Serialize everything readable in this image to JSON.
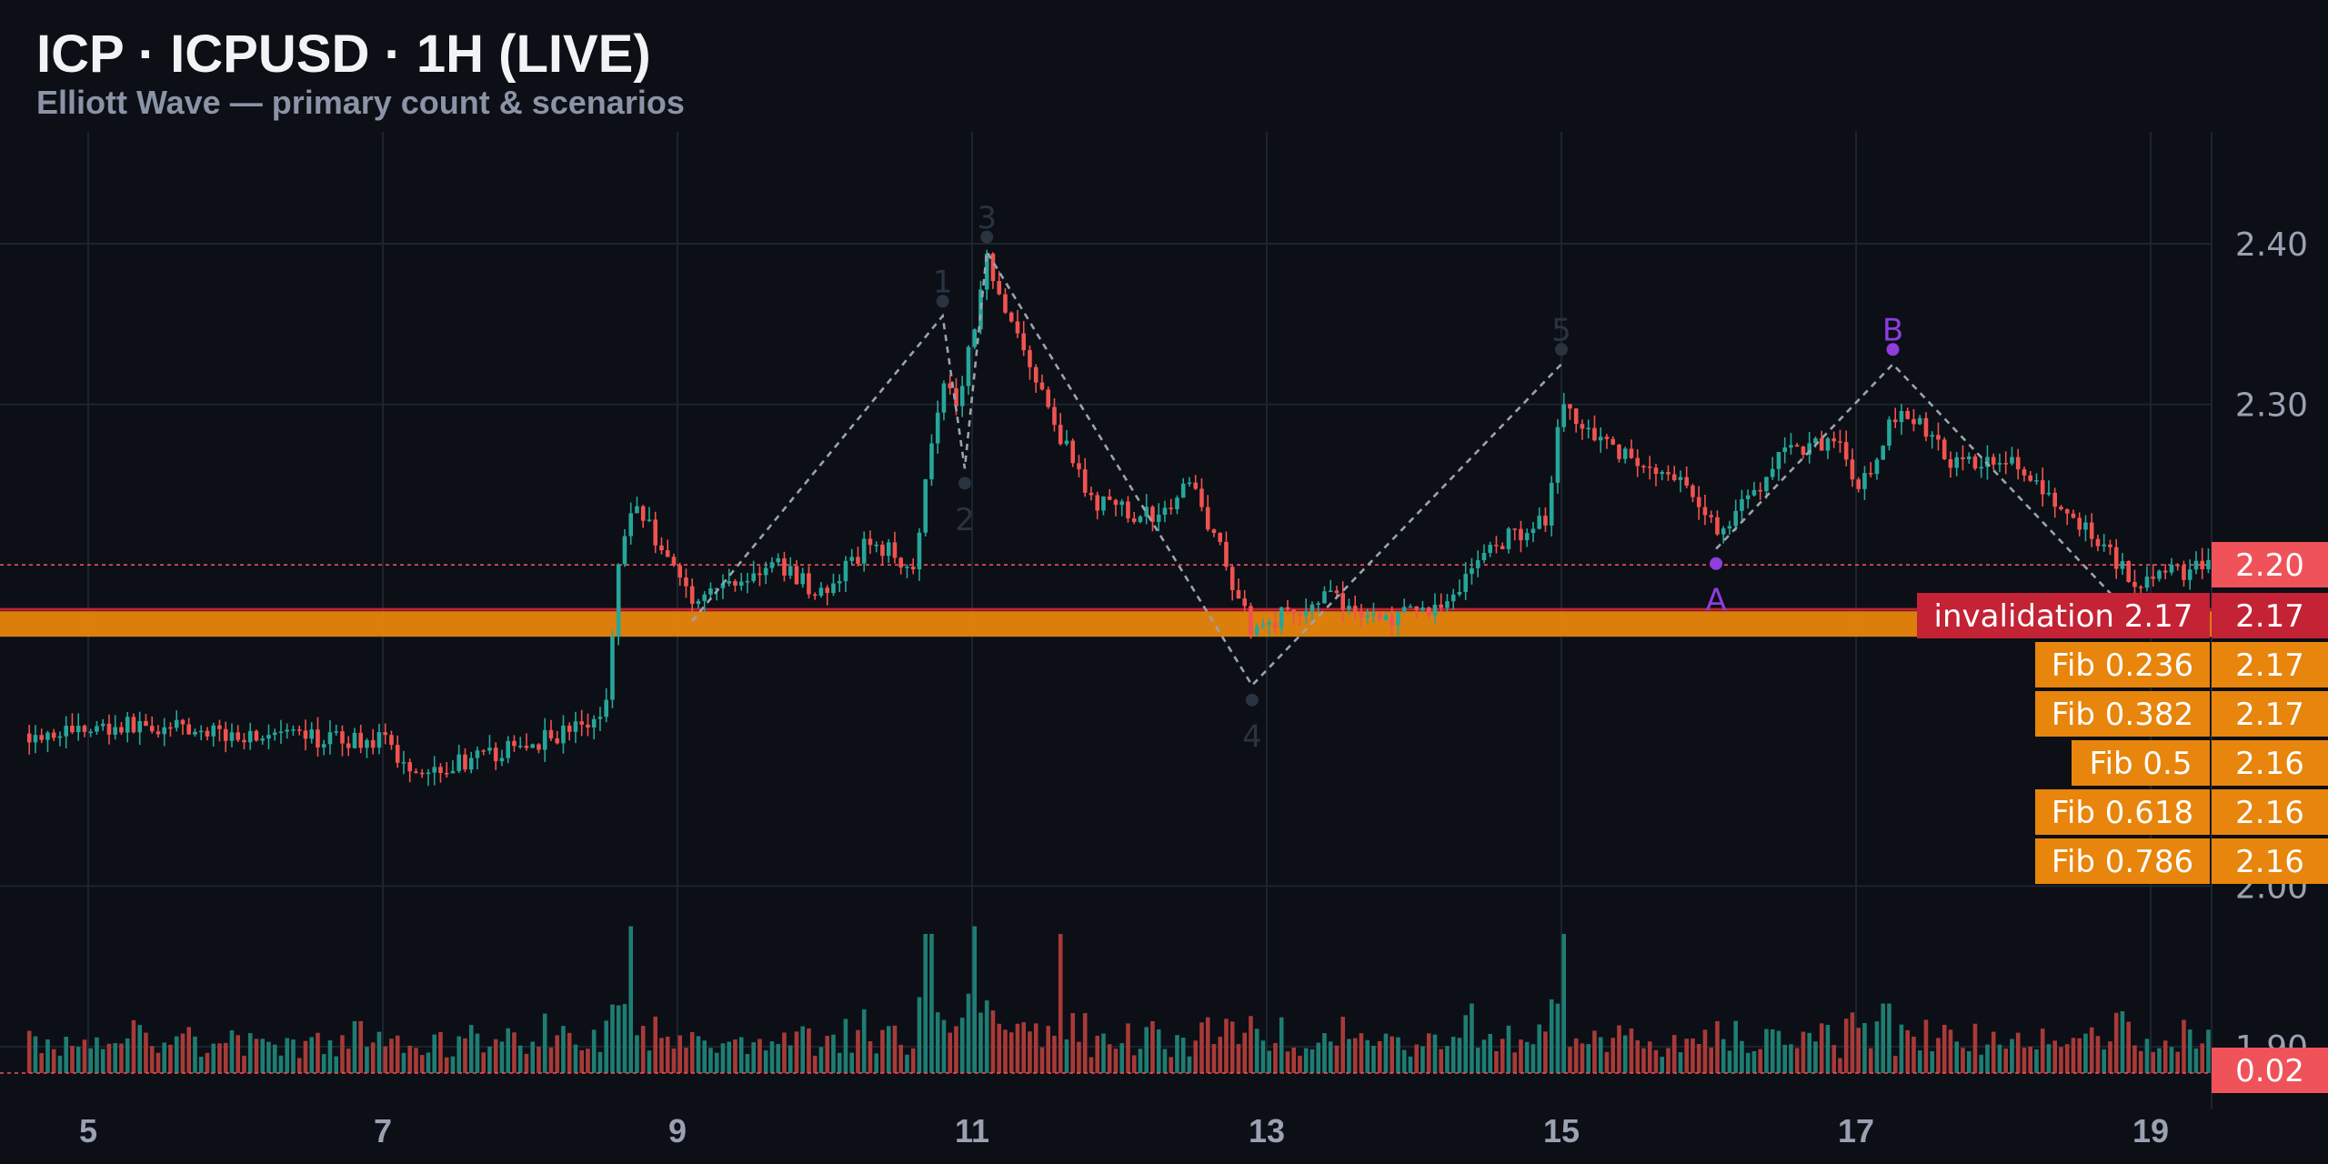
{
  "header": {
    "title": "ICP · ICPUSD · 1H (LIVE)",
    "subtitle": "Elliott Wave — primary count & scenarios"
  },
  "chart_data": {
    "type": "candlestick",
    "symbol": "ICPUSD",
    "timeframe": "1H",
    "x_ticks": [
      "5",
      "7",
      "9",
      "11",
      "13",
      "15",
      "17",
      "19"
    ],
    "x_range_days": [
      4.6,
      19.4
    ],
    "y_ticks": [
      "2.40",
      "2.30",
      "2.00",
      "1.90"
    ],
    "y_range": [
      1.87,
      2.47
    ],
    "grid": true,
    "price_path": [
      {
        "d": 4.6,
        "p": 2.095
      },
      {
        "d": 5.3,
        "p": 2.1
      },
      {
        "d": 5.9,
        "p": 2.095
      },
      {
        "d": 6.5,
        "p": 2.092
      },
      {
        "d": 7.0,
        "p": 2.09
      },
      {
        "d": 7.2,
        "p": 2.072
      },
      {
        "d": 7.7,
        "p": 2.08
      },
      {
        "d": 8.2,
        "p": 2.095
      },
      {
        "d": 8.5,
        "p": 2.105
      },
      {
        "d": 8.6,
        "p": 2.2
      },
      {
        "d": 8.7,
        "p": 2.24
      },
      {
        "d": 9.1,
        "p": 2.18
      },
      {
        "d": 9.7,
        "p": 2.2
      },
      {
        "d": 10.0,
        "p": 2.18
      },
      {
        "d": 10.3,
        "p": 2.215
      },
      {
        "d": 10.6,
        "p": 2.2
      },
      {
        "d": 10.8,
        "p": 2.32
      },
      {
        "d": 10.9,
        "p": 2.3
      },
      {
        "d": 11.1,
        "p": 2.39
      },
      {
        "d": 11.5,
        "p": 2.3
      },
      {
        "d": 11.8,
        "p": 2.24
      },
      {
        "d": 12.2,
        "p": 2.23
      },
      {
        "d": 12.5,
        "p": 2.25
      },
      {
        "d": 12.9,
        "p": 2.16
      },
      {
        "d": 13.4,
        "p": 2.18
      },
      {
        "d": 13.8,
        "p": 2.165
      },
      {
        "d": 14.2,
        "p": 2.175
      },
      {
        "d": 14.5,
        "p": 2.21
      },
      {
        "d": 14.9,
        "p": 2.23
      },
      {
        "d": 15.0,
        "p": 2.3
      },
      {
        "d": 15.4,
        "p": 2.27
      },
      {
        "d": 15.8,
        "p": 2.25
      },
      {
        "d": 16.1,
        "p": 2.22
      },
      {
        "d": 16.5,
        "p": 2.27
      },
      {
        "d": 16.9,
        "p": 2.28
      },
      {
        "d": 17.0,
        "p": 2.24
      },
      {
        "d": 17.3,
        "p": 2.3
      },
      {
        "d": 17.7,
        "p": 2.26
      },
      {
        "d": 18.0,
        "p": 2.27
      },
      {
        "d": 18.3,
        "p": 2.24
      },
      {
        "d": 18.6,
        "p": 2.22
      },
      {
        "d": 18.9,
        "p": 2.19
      },
      {
        "d": 19.4,
        "p": 2.2
      }
    ],
    "volume_spikes": [
      {
        "d": 8.7,
        "v": 0.95
      },
      {
        "d": 10.7,
        "v": 0.9
      },
      {
        "d": 11.0,
        "v": 0.95
      },
      {
        "d": 11.6,
        "v": 0.9
      },
      {
        "d": 15.0,
        "v": 0.9
      },
      {
        "d": 17.2,
        "v": 0.45
      },
      {
        "d": 14.4,
        "v": 0.45
      },
      {
        "d": 18.8,
        "v": 0.4
      }
    ],
    "elliott_wave": {
      "impulse_points": [
        {
          "label": "",
          "d": 9.1,
          "p": 2.165
        },
        {
          "label": "1",
          "d": 10.8,
          "p": 2.355
        },
        {
          "label": "2",
          "d": 10.95,
          "p": 2.26
        },
        {
          "label": "3",
          "d": 11.1,
          "p": 2.395
        },
        {
          "label": "4",
          "d": 12.9,
          "p": 2.125
        },
        {
          "label": "5",
          "d": 15.0,
          "p": 2.325
        }
      ],
      "corrective_points": [
        {
          "label": "A",
          "d": 16.05,
          "p": 2.21
        },
        {
          "label": "B",
          "d": 17.25,
          "p": 2.325
        },
        {
          "label": "",
          "d": 18.75,
          "p": 2.18
        }
      ],
      "label_colors": {
        "impulse": "#2a3340",
        "corrective": "#8f3dde"
      }
    },
    "levels": [
      {
        "name": "last-price",
        "value": 2.2,
        "axis_label": "2.20",
        "color": "#f0525a"
      },
      {
        "name": "invalidation",
        "value": 2.17,
        "tag": "invalidation 2.17",
        "axis_label": "2.17",
        "color": "#c42235"
      },
      {
        "name": "fib-0.236",
        "tag": "Fib 0.236",
        "axis_label": "2.17",
        "color": "#e8850c"
      },
      {
        "name": "fib-0.382",
        "tag": "Fib 0.382",
        "axis_label": "2.17",
        "color": "#e8850c"
      },
      {
        "name": "fib-0.5",
        "tag": "Fib 0.5",
        "axis_label": "2.16",
        "color": "#e8850c"
      },
      {
        "name": "fib-0.618",
        "tag": "Fib 0.618",
        "axis_label": "2.16",
        "color": "#e8850c"
      },
      {
        "name": "fib-0.786",
        "tag": "Fib 0.786",
        "axis_label": "2.16",
        "color": "#e8850c"
      }
    ],
    "volume_axis_label": "0.02",
    "colors": {
      "up": "#26a69a",
      "down": "#ef5350",
      "volume_up": "#1e7d73",
      "volume_down": "#a83a38",
      "grid": "#1c2430",
      "axis_text": "#9aa1b3",
      "wave_line": "#9aa3b0",
      "fib_band": "#e8850c"
    }
  }
}
